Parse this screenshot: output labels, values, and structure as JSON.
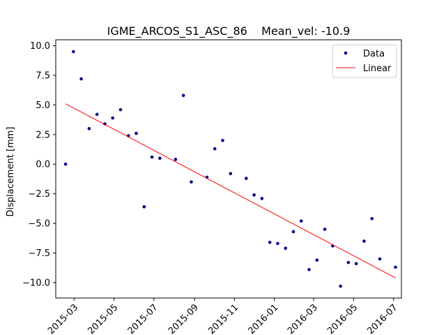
{
  "chart_data": {
    "type": "scatter",
    "title": "IGME_ARCOS_S1_ASC_86    Mean_vel: -10.9",
    "xlabel": "",
    "ylabel": "Displacement [mm]",
    "xlim": [
      "2015-02-01",
      "2016-07-13"
    ],
    "ylim": [
      -11.3,
      10.5
    ],
    "yticks": [
      10.0,
      7.5,
      5.0,
      2.5,
      0.0,
      -2.5,
      -5.0,
      -7.5,
      -10.0
    ],
    "yticklabels": [
      "10.0",
      "7.5",
      "5.0",
      "2.5",
      "0.0",
      "−2.5",
      "−5.0",
      "−7.5",
      "−10.0"
    ],
    "xticks": [
      "2015-03-01",
      "2015-05-01",
      "2015-07-01",
      "2015-09-01",
      "2015-11-01",
      "2016-01-01",
      "2016-03-01",
      "2016-05-01",
      "2016-07-01"
    ],
    "xticklabels": [
      "2015-03",
      "2015-05",
      "2015-07",
      "2015-09",
      "2015-11",
      "2016-01",
      "2016-03",
      "2016-05",
      "2016-07"
    ],
    "grid": false,
    "legend_position": "top-right",
    "series": [
      {
        "name": "Data",
        "kind": "scatter",
        "color": "#00008b",
        "points": [
          {
            "x": "2015-02-16",
            "y": 0.0
          },
          {
            "x": "2015-02-28",
            "y": 9.5
          },
          {
            "x": "2015-03-12",
            "y": 7.2
          },
          {
            "x": "2015-03-24",
            "y": 3.0
          },
          {
            "x": "2015-04-05",
            "y": 4.2
          },
          {
            "x": "2015-04-17",
            "y": 3.4
          },
          {
            "x": "2015-04-29",
            "y": 3.9
          },
          {
            "x": "2015-05-11",
            "y": 4.6
          },
          {
            "x": "2015-05-23",
            "y": 2.4
          },
          {
            "x": "2015-06-04",
            "y": 2.6
          },
          {
            "x": "2015-06-16",
            "y": -3.6
          },
          {
            "x": "2015-06-28",
            "y": 0.6
          },
          {
            "x": "2015-07-10",
            "y": 0.5
          },
          {
            "x": "2015-08-03",
            "y": 0.4
          },
          {
            "x": "2015-08-15",
            "y": 5.8
          },
          {
            "x": "2015-08-27",
            "y": -1.5
          },
          {
            "x": "2015-09-20",
            "y": -1.1
          },
          {
            "x": "2015-10-02",
            "y": 1.3
          },
          {
            "x": "2015-10-14",
            "y": 2.0
          },
          {
            "x": "2015-10-26",
            "y": -0.8
          },
          {
            "x": "2015-11-19",
            "y": -1.2
          },
          {
            "x": "2015-12-01",
            "y": -2.6
          },
          {
            "x": "2015-12-13",
            "y": -2.9
          },
          {
            "x": "2015-12-25",
            "y": -6.6
          },
          {
            "x": "2016-01-06",
            "y": -6.7
          },
          {
            "x": "2016-01-18",
            "y": -7.1
          },
          {
            "x": "2016-01-30",
            "y": -5.7
          },
          {
            "x": "2016-02-11",
            "y": -4.8
          },
          {
            "x": "2016-02-23",
            "y": -8.9
          },
          {
            "x": "2016-03-06",
            "y": -8.1
          },
          {
            "x": "2016-03-18",
            "y": -5.5
          },
          {
            "x": "2016-03-30",
            "y": -6.9
          },
          {
            "x": "2016-04-11",
            "y": -10.3
          },
          {
            "x": "2016-04-23",
            "y": -8.3
          },
          {
            "x": "2016-05-05",
            "y": -8.4
          },
          {
            "x": "2016-05-17",
            "y": -6.5
          },
          {
            "x": "2016-05-29",
            "y": -4.6
          },
          {
            "x": "2016-06-10",
            "y": -8.0
          },
          {
            "x": "2016-07-04",
            "y": -8.7
          }
        ]
      },
      {
        "name": "Linear",
        "kind": "line",
        "color": "#ff0000",
        "points": [
          {
            "x": "2015-02-16",
            "y": 5.1
          },
          {
            "x": "2016-07-04",
            "y": -9.6
          }
        ]
      }
    ]
  }
}
